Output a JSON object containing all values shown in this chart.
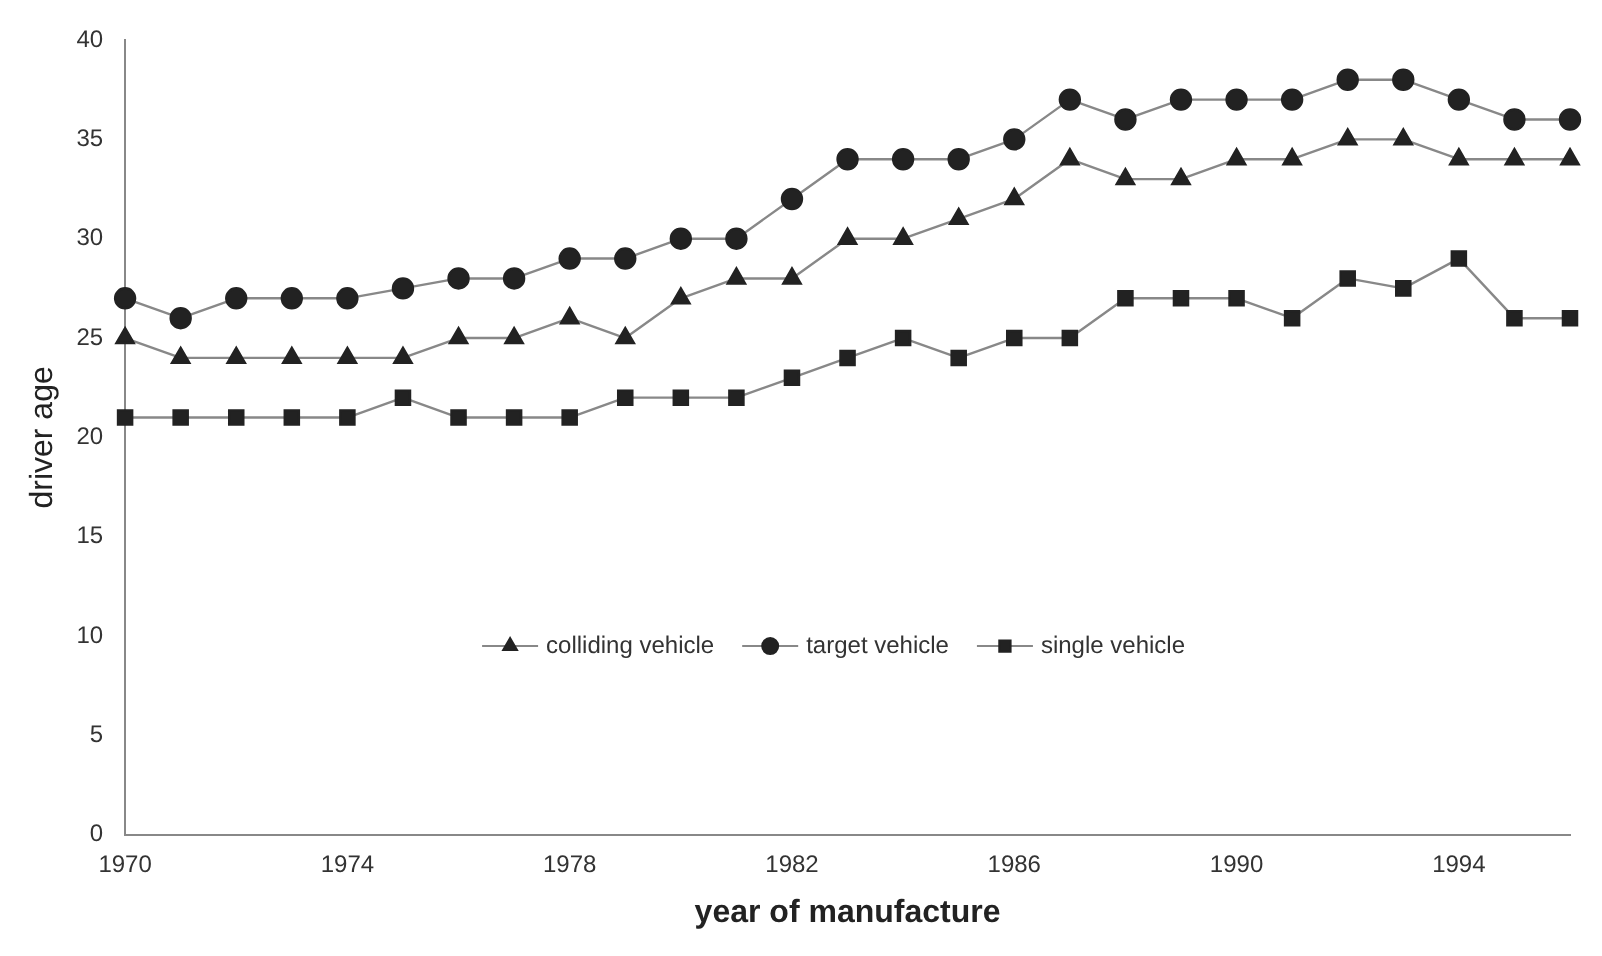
{
  "chart_data": {
    "type": "line",
    "xlabel": "year of manufacture",
    "ylabel": "driver age",
    "categories": [
      "1970",
      null,
      null,
      null,
      "1974",
      null,
      null,
      null,
      "1978",
      null,
      null,
      null,
      "1982",
      null,
      null,
      null,
      "1986",
      null,
      null,
      null,
      "1990",
      null,
      null,
      null,
      "1994",
      null,
      null
    ],
    "series": [
      {
        "name": "colliding vehicle",
        "color": "#222222",
        "marker": "triangle",
        "values": [
          25,
          24,
          24,
          24,
          24,
          24,
          25,
          25,
          26,
          25,
          27,
          28,
          28,
          30,
          30,
          31,
          32,
          34,
          33,
          33,
          34,
          34,
          35,
          35,
          34,
          34,
          34
        ]
      },
      {
        "name": "target vehicle",
        "color": "#222222",
        "marker": "circle",
        "values": [
          27,
          26,
          27,
          27,
          27,
          27.5,
          28,
          28,
          29,
          29,
          30,
          30,
          32,
          34,
          34,
          34,
          35,
          37,
          36,
          37,
          37,
          37,
          38,
          38,
          37,
          36,
          36
        ]
      },
      {
        "name": "single vehicle",
        "color": "#222222",
        "marker": "square",
        "values": [
          21,
          21,
          21,
          21,
          21,
          22,
          21,
          21,
          21,
          22,
          22,
          22,
          23,
          24,
          25,
          24,
          25,
          25,
          27,
          27,
          27,
          26,
          28,
          27.5,
          29,
          26,
          26
        ]
      }
    ],
    "ylim": [
      0,
      40
    ],
    "yticks": [
      0,
      5,
      10,
      15,
      20,
      25,
      30,
      35,
      40
    ],
    "grid": false,
    "legend": "center"
  }
}
